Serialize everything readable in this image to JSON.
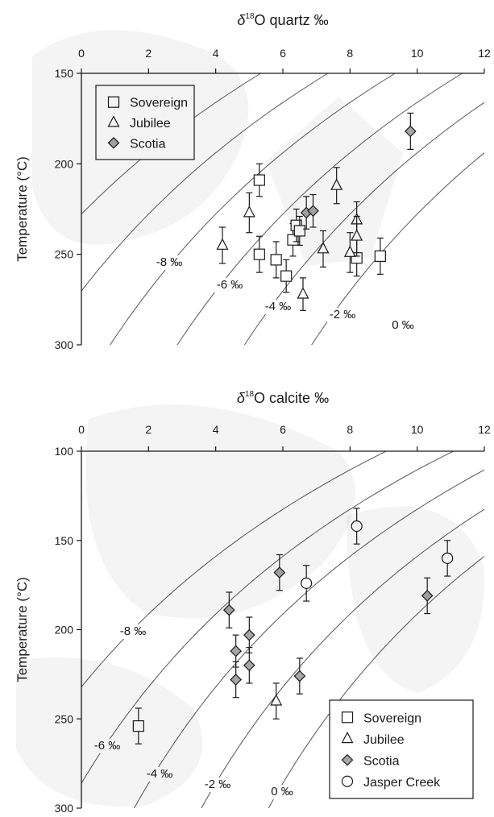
{
  "chart_data": [
    {
      "type": "scatter",
      "title": "δ18O quartz ‰",
      "title_prefix": "δ",
      "title_sup": "18",
      "title_rest": "O quartz ‰",
      "xlabel": "",
      "ylabel": "Temperature (°C)",
      "xlim": [
        0,
        12
      ],
      "ylim": [
        150,
        300
      ],
      "y_inverted": true,
      "x_ticks": [
        "0",
        "2",
        "4",
        "6",
        "8",
        "10",
        "12"
      ],
      "y_ticks": [
        "150",
        "200",
        "250",
        "300"
      ],
      "grid": false,
      "legend_position": "top-left",
      "legend": [
        {
          "name": "Sovereign",
          "marker": "square"
        },
        {
          "name": "Jubilee",
          "marker": "triangle"
        },
        {
          "name": "Scotia",
          "marker": "diamond"
        }
      ],
      "isolines": {
        "labels": [
          "-8 ‰",
          "-6 ‰",
          "-4 ‰",
          "-2 ‰",
          "0 ‰"
        ],
        "water_values": [
          -10,
          -8,
          -6,
          -4,
          -2,
          0
        ]
      },
      "series": [
        {
          "name": "Sovereign",
          "marker": "square",
          "points": [
            {
              "x": 5.3,
              "y": 209,
              "err": 9
            },
            {
              "x": 5.3,
              "y": 250,
              "err": 10
            },
            {
              "x": 5.8,
              "y": 253,
              "err": 10
            },
            {
              "x": 6.1,
              "y": 262,
              "err": 9
            },
            {
              "x": 6.3,
              "y": 242,
              "err": 9
            },
            {
              "x": 6.4,
              "y": 234,
              "err": 9
            },
            {
              "x": 6.5,
              "y": 237,
              "err": 8
            },
            {
              "x": 8.2,
              "y": 252,
              "err": 10
            },
            {
              "x": 8.9,
              "y": 251,
              "err": 10
            }
          ]
        },
        {
          "name": "Jubilee",
          "marker": "triangle",
          "points": [
            {
              "x": 4.2,
              "y": 245,
              "err": 10
            },
            {
              "x": 5.0,
              "y": 227,
              "err": 11
            },
            {
              "x": 6.6,
              "y": 272,
              "err": 9
            },
            {
              "x": 7.2,
              "y": 247,
              "err": 10
            },
            {
              "x": 7.6,
              "y": 212,
              "err": 10
            },
            {
              "x": 8.0,
              "y": 249,
              "err": 11
            },
            {
              "x": 8.2,
              "y": 231,
              "err": 10
            },
            {
              "x": 8.2,
              "y": 240,
              "err": 11
            }
          ]
        },
        {
          "name": "Scotia",
          "marker": "diamond",
          "points": [
            {
              "x": 6.7,
              "y": 227,
              "err": 9
            },
            {
              "x": 6.9,
              "y": 226,
              "err": 9
            },
            {
              "x": 9.8,
              "y": 182,
              "err": 10
            }
          ]
        }
      ]
    },
    {
      "type": "scatter",
      "title": "δ18O calcite ‰",
      "title_prefix": "δ",
      "title_sup": "18",
      "title_rest": "O calcite ‰",
      "xlabel": "",
      "ylabel": "Temperature (°C)",
      "xlim": [
        0,
        12
      ],
      "ylim": [
        100,
        300
      ],
      "y_inverted": true,
      "x_ticks": [
        "0",
        "2",
        "4",
        "6",
        "8",
        "10",
        "12"
      ],
      "y_ticks": [
        "100",
        "150",
        "200",
        "250",
        "300"
      ],
      "grid": false,
      "legend_position": "bottom-right",
      "legend": [
        {
          "name": "Sovereign",
          "marker": "square"
        },
        {
          "name": "Jubilee",
          "marker": "triangle"
        },
        {
          "name": "Scotia",
          "marker": "diamond"
        },
        {
          "name": "Jasper Creek",
          "marker": "circle"
        }
      ],
      "isolines": {
        "labels": [
          "-8 ‰",
          "-6 ‰",
          "-4 ‰",
          "-2 ‰",
          "0 ‰"
        ],
        "water_values": [
          -8,
          -6,
          -4,
          -2,
          0
        ]
      },
      "series": [
        {
          "name": "Sovereign",
          "marker": "square",
          "points": [
            {
              "x": 1.7,
              "y": 254,
              "err": 10
            }
          ]
        },
        {
          "name": "Jubilee",
          "marker": "triangle",
          "points": [
            {
              "x": 5.8,
              "y": 240,
              "err": 10
            }
          ]
        },
        {
          "name": "Scotia",
          "marker": "diamond",
          "points": [
            {
              "x": 4.4,
              "y": 189,
              "err": 10
            },
            {
              "x": 4.6,
              "y": 212,
              "err": 9
            },
            {
              "x": 4.6,
              "y": 228,
              "err": 10
            },
            {
              "x": 5.0,
              "y": 203,
              "err": 10
            },
            {
              "x": 5.0,
              "y": 220,
              "err": 10
            },
            {
              "x": 5.9,
              "y": 168,
              "err": 10
            },
            {
              "x": 6.5,
              "y": 226,
              "err": 10
            },
            {
              "x": 10.3,
              "y": 181,
              "err": 10
            }
          ]
        },
        {
          "name": "Jasper Creek",
          "marker": "circle",
          "points": [
            {
              "x": 6.7,
              "y": 174,
              "err": 10
            },
            {
              "x": 8.2,
              "y": 142,
              "err": 10
            },
            {
              "x": 10.9,
              "y": 160,
              "err": 10
            }
          ]
        }
      ]
    }
  ]
}
